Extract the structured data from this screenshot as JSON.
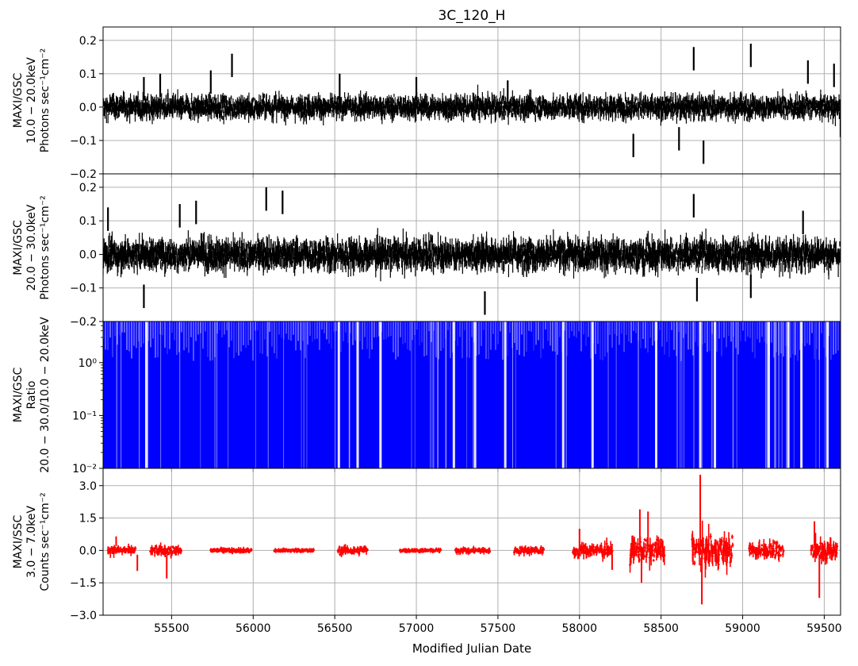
{
  "chart_data": {
    "type": "line",
    "title": "3C_120_H",
    "xlabel": "Modified Julian Date",
    "xlim": [
      55080,
      59600
    ],
    "xticks": [
      55500,
      56000,
      56500,
      57000,
      57500,
      58000,
      58500,
      59000,
      59500
    ],
    "grid": true,
    "panels": [
      {
        "ylabel": [
          "MAXI/GSC",
          "10.0 − 20.0keV",
          "Photons sec⁻¹cm⁻²"
        ],
        "ylim": [
          -0.2,
          0.24
        ],
        "yticks": [
          "−0.2",
          "−0.1",
          "0.0",
          "0.1",
          "0.2"
        ],
        "ytick_values": [
          -0.2,
          -0.1,
          0.0,
          0.1,
          0.2
        ],
        "color": "#000000",
        "noise_sigma": 0.022,
        "spikes": [
          {
            "x": 55330,
            "y": 0.09
          },
          {
            "x": 55430,
            "y": 0.1
          },
          {
            "x": 55740,
            "y": 0.11
          },
          {
            "x": 55870,
            "y": 0.16
          },
          {
            "x": 56530,
            "y": 0.1
          },
          {
            "x": 57000,
            "y": 0.09
          },
          {
            "x": 57560,
            "y": 0.08
          },
          {
            "x": 58330,
            "y": -0.15
          },
          {
            "x": 58610,
            "y": -0.13
          },
          {
            "x": 58700,
            "y": 0.18
          },
          {
            "x": 58760,
            "y": -0.17
          },
          {
            "x": 59050,
            "y": 0.19
          },
          {
            "x": 59400,
            "y": 0.14
          },
          {
            "x": 59560,
            "y": 0.13
          },
          {
            "x": 59600,
            "y": -0.09
          }
        ]
      },
      {
        "ylabel": [
          "MAXI/GSC",
          "20.0 − 30.0keV",
          "Photons sec⁻¹cm⁻²"
        ],
        "ylim": [
          -0.2,
          0.24
        ],
        "yticks": [
          "−0.2",
          "−0.1",
          "0.0",
          "0.1",
          "0.2"
        ],
        "ytick_values": [
          -0.2,
          -0.1,
          0.0,
          0.1,
          0.2
        ],
        "color": "#000000",
        "noise_sigma": 0.03,
        "spikes": [
          {
            "x": 55110,
            "y": 0.14
          },
          {
            "x": 55330,
            "y": -0.16
          },
          {
            "x": 55550,
            "y": 0.15
          },
          {
            "x": 55650,
            "y": 0.16
          },
          {
            "x": 56080,
            "y": 0.2
          },
          {
            "x": 56180,
            "y": 0.19
          },
          {
            "x": 57420,
            "y": -0.18
          },
          {
            "x": 58700,
            "y": 0.18
          },
          {
            "x": 58720,
            "y": -0.14
          },
          {
            "x": 59050,
            "y": -0.13
          },
          {
            "x": 59370,
            "y": 0.13
          }
        ]
      },
      {
        "ylabel": [
          "MAXI/GSC",
          "Ratio",
          "20.0 − 30.0/10.0 − 20.0keV"
        ],
        "scale": "log",
        "ylim": [
          0.01,
          6
        ],
        "yticks": [
          "10⁻²",
          "10⁻¹",
          "10⁰"
        ],
        "ytick_values": [
          0.01,
          0.1,
          1
        ],
        "color": "#0000ff",
        "gaps": [
          55345,
          56525,
          56640,
          56780,
          57230,
          57360,
          57545,
          57900,
          58080,
          58470,
          58740,
          58830,
          59160,
          59280,
          59360,
          59520
        ]
      },
      {
        "ylabel": [
          "MAXI/SSC",
          "3.0 − 7.0keV",
          "Counts sec⁻¹cm⁻²"
        ],
        "ylim": [
          -3.0,
          3.8
        ],
        "yticks": [
          "−3.0",
          "−1.5",
          "0.0",
          "1.5",
          "3.0"
        ],
        "ytick_values": [
          -3.0,
          -1.5,
          0.0,
          1.5,
          3.0
        ],
        "color": "#ff0000",
        "segments": [
          {
            "x0": 55110,
            "x1": 55280,
            "amp": 0.3
          },
          {
            "x0": 55370,
            "x1": 55560,
            "amp": 0.35
          },
          {
            "x0": 55740,
            "x1": 55990,
            "amp": 0.15
          },
          {
            "x0": 56130,
            "x1": 56370,
            "amp": 0.12
          },
          {
            "x0": 56520,
            "x1": 56700,
            "amp": 0.3
          },
          {
            "x0": 56900,
            "x1": 57150,
            "amp": 0.12
          },
          {
            "x0": 57240,
            "x1": 57450,
            "amp": 0.2
          },
          {
            "x0": 57600,
            "x1": 57780,
            "amp": 0.25
          },
          {
            "x0": 57960,
            "x1": 58200,
            "amp": 0.5
          },
          {
            "x0": 58310,
            "x1": 58520,
            "amp": 0.9
          },
          {
            "x0": 58690,
            "x1": 58940,
            "amp": 1.2
          },
          {
            "x0": 59040,
            "x1": 59250,
            "amp": 0.55
          },
          {
            "x0": 59420,
            "x1": 59580,
            "amp": 0.8
          }
        ],
        "spikes": [
          {
            "x": 55160,
            "y": 0.65
          },
          {
            "x": 55290,
            "y": -0.95
          },
          {
            "x": 55470,
            "y": -1.3
          },
          {
            "x": 58000,
            "y": 1.0
          },
          {
            "x": 58200,
            "y": -0.9
          },
          {
            "x": 58370,
            "y": 1.9
          },
          {
            "x": 58380,
            "y": -1.5
          },
          {
            "x": 58420,
            "y": 1.8
          },
          {
            "x": 58740,
            "y": 3.5
          },
          {
            "x": 58750,
            "y": -2.5
          },
          {
            "x": 59470,
            "y": -2.2
          },
          {
            "x": 59440,
            "y": 1.35
          }
        ]
      }
    ]
  }
}
